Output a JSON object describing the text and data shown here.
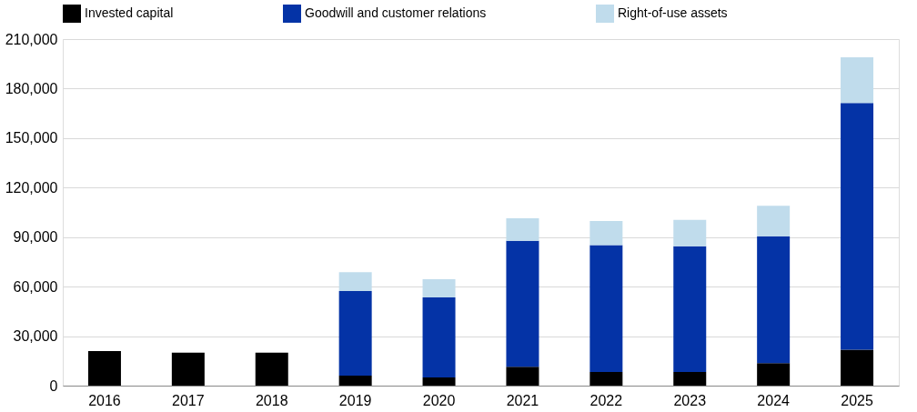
{
  "chart_data": {
    "type": "bar",
    "stacked": true,
    "categories": [
      "2016",
      "2017",
      "2018",
      "2019",
      "2020",
      "2021",
      "2022",
      "2023",
      "2024",
      "2025"
    ],
    "series": [
      {
        "name": "Invested capital",
        "color": "#000000",
        "values": [
          21000,
          20000,
          20000,
          6000,
          5000,
          11500,
          8200,
          8200,
          13600,
          21800
        ]
      },
      {
        "name": "Goodwill and customer relations",
        "color": "#0433a6",
        "values": [
          null,
          null,
          null,
          51300,
          48500,
          76300,
          76900,
          76300,
          76900,
          149500
        ]
      },
      {
        "name": "Right-of-use assets",
        "color": "#c0dcec",
        "values": [
          null,
          null,
          null,
          11400,
          11000,
          13600,
          14700,
          15900,
          18500,
          27700
        ]
      }
    ],
    "ylim": [
      0,
      210000
    ],
    "yticks": [
      {
        "value": 0,
        "label": "0"
      },
      {
        "value": 30000,
        "label": "30,000"
      },
      {
        "value": 60000,
        "label": "60,000"
      },
      {
        "value": 90000,
        "label": "90,000"
      },
      {
        "value": 120000,
        "label": "120,000"
      },
      {
        "value": 150000,
        "label": "150,000"
      },
      {
        "value": 180000,
        "label": "180,000"
      },
      {
        "value": 210000,
        "label": "210,000"
      }
    ],
    "grid": "y",
    "legend": "top"
  }
}
